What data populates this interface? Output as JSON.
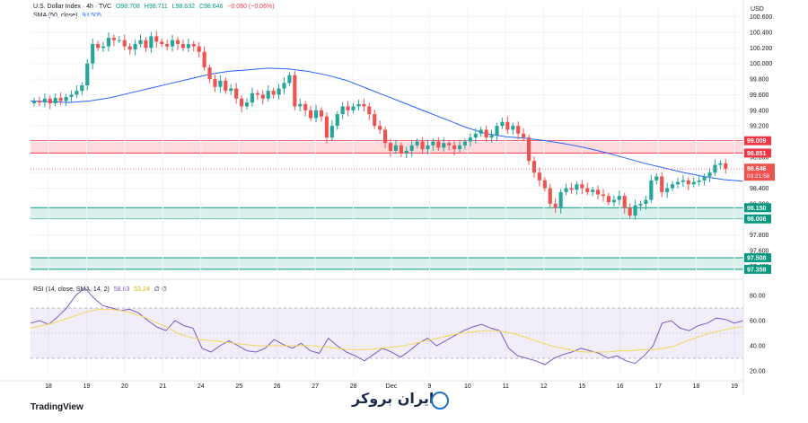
{
  "main_legend": {
    "symbol": "U.S. Dollar Index · 4h · TVC",
    "open": "O98.708",
    "high": "H98.711",
    "low": "L98.632",
    "close": "C98.646",
    "change": "−0.060 (−0.06%)"
  },
  "sma_legend": {
    "label": "SMA (50, close)",
    "value": "98.505"
  },
  "rsi_legend": {
    "label": "RSI (14, close, SMA, 14, 2)",
    "value1": "58.63",
    "value2": "53.24",
    "extra": "∅ ∅"
  },
  "currency": "USD",
  "price_tag": {
    "value": "98.646",
    "countdown": "03:21:58"
  },
  "brand_text": "ایران بروکر",
  "tv_logo": "TradingView",
  "colors": {
    "up": "#26a69a",
    "down": "#ef5350",
    "sma": "#2962ff",
    "rsi": "#7e57c2",
    "rsi_ma": "#f2d75c",
    "resistance": "#f23645",
    "support": "#089981"
  },
  "chart_data": [
    {
      "type": "candlestick",
      "title": "U.S. Dollar Index · 4h · TVC",
      "ylim": [
        97.3,
        100.7
      ],
      "y_ticks": [
        "100.600",
        "100.400",
        "100.200",
        "100.000",
        "99.800",
        "99.600",
        "99.400",
        "99.200",
        "99.000",
        "98.800",
        "98.600",
        "98.400",
        "98.200",
        "98.000",
        "97.800",
        "97.600",
        "97.400"
      ],
      "x_ticks": [
        "18",
        "19",
        "20",
        "21",
        "24",
        "25",
        "26",
        "27",
        "28",
        "Dec",
        "9",
        "10",
        "11",
        "12",
        "15",
        "16",
        "17",
        "18",
        "19"
      ],
      "closes": [
        99.52,
        99.5,
        99.55,
        99.49,
        99.56,
        99.52,
        99.57,
        99.6,
        99.65,
        99.72,
        100.0,
        100.25,
        100.2,
        100.22,
        100.33,
        100.3,
        100.3,
        100.22,
        100.18,
        100.25,
        100.3,
        100.2,
        100.35,
        100.28,
        100.25,
        100.22,
        100.3,
        100.25,
        100.2,
        100.25,
        100.22,
        100.15,
        99.95,
        99.8,
        99.7,
        99.78,
        99.65,
        99.68,
        99.55,
        99.45,
        99.5,
        99.62,
        99.6,
        99.55,
        99.65,
        99.6,
        99.68,
        99.75,
        99.85,
        99.45,
        99.48,
        99.4,
        99.3,
        99.4,
        99.32,
        99.05,
        99.2,
        99.35,
        99.45,
        99.4,
        99.45,
        99.48,
        99.45,
        99.35,
        99.2,
        99.15,
        98.98,
        98.88,
        98.95,
        98.85,
        98.88,
        98.95,
        99.0,
        98.9,
        98.95,
        99.0,
        98.92,
        98.98,
        98.95,
        98.9,
        98.95,
        99.0,
        99.05,
        99.1,
        99.15,
        99.05,
        99.08,
        99.2,
        99.25,
        99.15,
        99.2,
        99.1,
        99.05,
        98.75,
        98.6,
        98.5,
        98.4,
        98.2,
        98.15,
        98.35,
        98.4,
        98.38,
        98.45,
        98.4,
        98.35,
        98.38,
        98.32,
        98.3,
        98.22,
        98.25,
        98.3,
        98.15,
        98.05,
        98.18,
        98.2,
        98.25,
        98.5,
        98.55,
        98.35,
        98.4,
        98.45,
        98.48,
        98.5,
        98.45,
        98.48,
        98.5,
        98.55,
        98.6,
        98.7,
        98.72,
        98.65
      ],
      "sma": [
        99.52,
        99.51,
        99.5,
        99.52,
        99.56,
        99.62,
        99.68,
        99.74,
        99.8,
        99.86,
        99.9,
        99.92,
        99.94,
        99.93,
        99.9,
        99.85,
        99.78,
        99.68,
        99.58,
        99.48,
        99.38,
        99.28,
        99.18,
        99.1,
        99.06,
        99.04,
        99.01,
        98.97,
        98.92,
        98.86,
        98.79,
        98.72,
        98.66,
        98.6,
        98.55,
        98.51,
        98.49
      ],
      "resistance_zone": {
        "top": "99.009",
        "bottom": "98.851"
      },
      "support_zones": [
        {
          "top": "98.150",
          "bottom": "98.006"
        },
        {
          "top": "97.508",
          "bottom": "97.359"
        }
      ],
      "last_price": "98.646"
    },
    {
      "type": "line",
      "title": "RSI (14, close, SMA, 14, 2)",
      "ylim": [
        15,
        90
      ],
      "y_ticks": [
        "80.00",
        "60.00",
        "40.00",
        "20.00"
      ],
      "band": [
        30,
        70
      ],
      "rsi": [
        58,
        60,
        57,
        63,
        70,
        80,
        86,
        78,
        72,
        70,
        68,
        69,
        66,
        60,
        55,
        52,
        60,
        56,
        54,
        38,
        35,
        40,
        44,
        40,
        36,
        35,
        38,
        45,
        41,
        38,
        42,
        36,
        34,
        46,
        40,
        35,
        32,
        28,
        33,
        38,
        35,
        31,
        36,
        42,
        46,
        40,
        44,
        48,
        52,
        55,
        57,
        54,
        52,
        38,
        32,
        30,
        28,
        25,
        30,
        33,
        35,
        38,
        36,
        34,
        30,
        32,
        28,
        26,
        32,
        40,
        58,
        60,
        54,
        52,
        56,
        58,
        62,
        61,
        58,
        60
      ],
      "rsi_ma": [
        54,
        56,
        58,
        61,
        64,
        67,
        69,
        69,
        68,
        66,
        63,
        59,
        55,
        50,
        47,
        45,
        44,
        43,
        42,
        41,
        40,
        40,
        40,
        40,
        40,
        40,
        39,
        38,
        37,
        37,
        37,
        38,
        39,
        40,
        42,
        44,
        46,
        48,
        50,
        51,
        52,
        52,
        51,
        49,
        46,
        43,
        40,
        38,
        36,
        35,
        35,
        35,
        36,
        36,
        37,
        37,
        38,
        40,
        44,
        47,
        50,
        52,
        54,
        55
      ]
    }
  ]
}
